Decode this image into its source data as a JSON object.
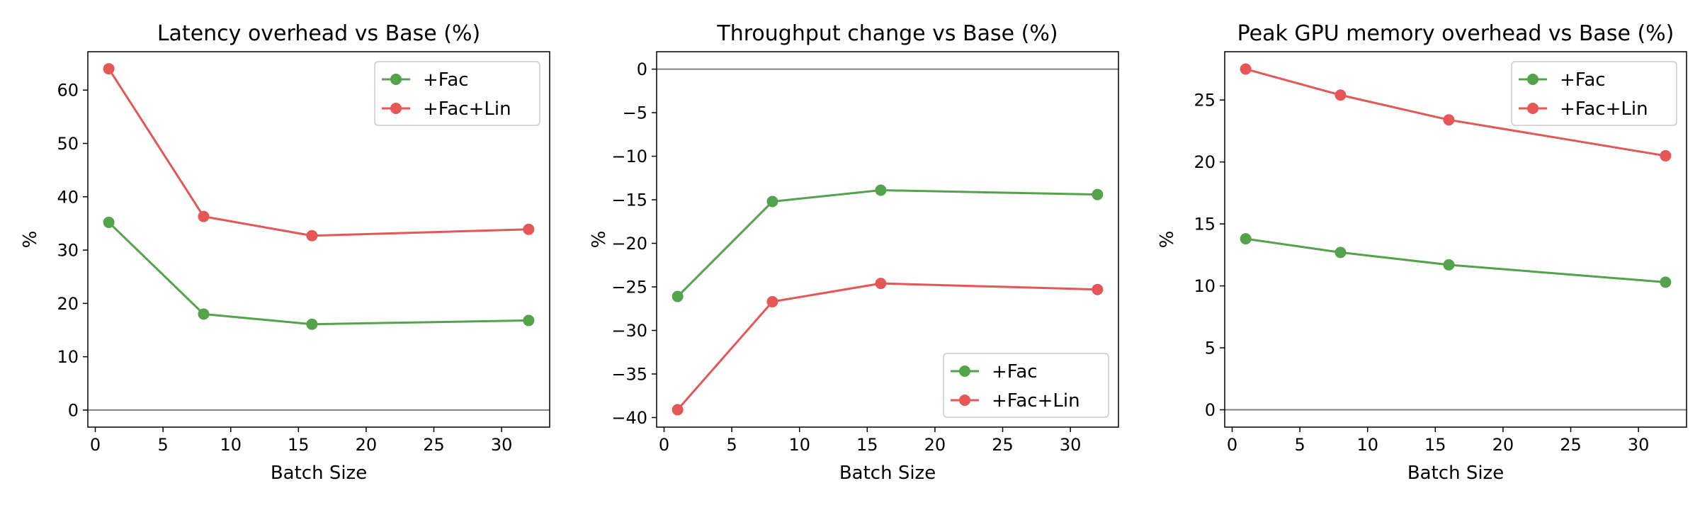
{
  "chart_data": [
    {
      "type": "line",
      "title": "Latency overhead vs Base (%)",
      "xlabel": "Batch Size",
      "ylabel": "%",
      "xlim": [
        -0.55,
        33.55
      ],
      "ylim": [
        -3.2,
        67.2
      ],
      "xticks": [
        0,
        5,
        10,
        15,
        20,
        25,
        30
      ],
      "yticks": [
        0,
        10,
        20,
        30,
        40,
        50,
        60
      ],
      "reference_line": 0,
      "legend": "upper right",
      "x": [
        1,
        8,
        16,
        32
      ],
      "series": [
        {
          "name": "+Fac",
          "color": "#54a24b",
          "values": [
            35.2,
            18.0,
            16.1,
            16.8
          ]
        },
        {
          "name": "+Fac+Lin",
          "color": "#e45756",
          "values": [
            64.0,
            36.3,
            32.7,
            33.9
          ]
        }
      ]
    },
    {
      "type": "line",
      "title": "Throughput change vs Base (%)",
      "xlabel": "Batch Size",
      "ylabel": "%",
      "xlim": [
        -0.55,
        33.55
      ],
      "ylim": [
        -41.1,
        2.0
      ],
      "xticks": [
        0,
        5,
        10,
        15,
        20,
        25,
        30
      ],
      "yticks": [
        0,
        -5,
        -10,
        -15,
        -20,
        -25,
        -30,
        -35,
        -40
      ],
      "reference_line": 0,
      "legend": "lower right",
      "x": [
        1,
        8,
        16,
        32
      ],
      "series": [
        {
          "name": "+Fac",
          "color": "#54a24b",
          "values": [
            -26.1,
            -15.2,
            -13.9,
            -14.4
          ]
        },
        {
          "name": "+Fac+Lin",
          "color": "#e45756",
          "values": [
            -39.1,
            -26.7,
            -24.6,
            -25.3
          ]
        }
      ]
    },
    {
      "type": "line",
      "title": "Peak GPU memory overhead vs Base (%)",
      "xlabel": "Batch Size",
      "ylabel": "%",
      "xlim": [
        -0.55,
        33.55
      ],
      "ylim": [
        -1.4,
        28.9
      ],
      "xticks": [
        0,
        5,
        10,
        15,
        20,
        25,
        30
      ],
      "yticks": [
        0,
        5,
        10,
        15,
        20,
        25
      ],
      "reference_line": 0,
      "legend": "upper right",
      "x": [
        1,
        8,
        16,
        32
      ],
      "series": [
        {
          "name": "+Fac",
          "color": "#54a24b",
          "values": [
            13.8,
            12.7,
            11.7,
            10.3
          ]
        },
        {
          "name": "+Fac+Lin",
          "color": "#e45756",
          "values": [
            27.5,
            25.4,
            23.4,
            20.5
          ]
        }
      ]
    }
  ]
}
